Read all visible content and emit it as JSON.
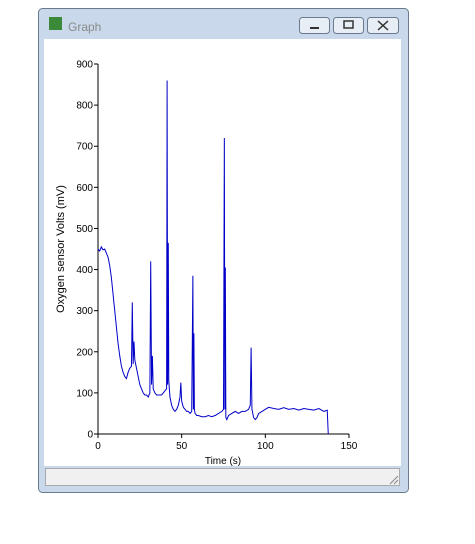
{
  "window": {
    "title": "Graph"
  },
  "chart_data": {
    "type": "line",
    "x_label": "Time (s)",
    "y_label": "Oxygen sensor Volts (mV)",
    "color": "#0000c8",
    "xlim": [
      0,
      150
    ],
    "ylim": [
      0,
      900
    ],
    "xticks": [
      0,
      50,
      100,
      150
    ],
    "yticks": [
      0,
      100,
      200,
      300,
      400,
      500,
      600,
      700,
      800,
      900
    ],
    "x": [
      0,
      1,
      2,
      3,
      4,
      5,
      6,
      7,
      8,
      9,
      10,
      11,
      12,
      13,
      14,
      15,
      16,
      17,
      18,
      19,
      20,
      20.5,
      21,
      21.5,
      22,
      23,
      24,
      25,
      26,
      27,
      28,
      29,
      30,
      31,
      31.5,
      32,
      32.5,
      33,
      34,
      35,
      36,
      37,
      38,
      39,
      40,
      41,
      41.3,
      41.6,
      42,
      42.3,
      43,
      44,
      45,
      46,
      47,
      48,
      49,
      49.5,
      50,
      51,
      52,
      53,
      54,
      55,
      56,
      56.7,
      57,
      57.3,
      57.6,
      58,
      59,
      60,
      62,
      64,
      66,
      68,
      70,
      72,
      74,
      75,
      75.5,
      75.8,
      76.1,
      76.4,
      77,
      78,
      80,
      82,
      84,
      86,
      88,
      90,
      91,
      91.5,
      92,
      93,
      94,
      95,
      96,
      98,
      100,
      102,
      105,
      108,
      111,
      114,
      117,
      120,
      123,
      126,
      129,
      132,
      135,
      137,
      137.6
    ],
    "values": [
      450,
      445,
      455,
      448,
      450,
      440,
      430,
      410,
      380,
      340,
      300,
      260,
      220,
      190,
      165,
      150,
      140,
      135,
      150,
      160,
      165,
      320,
      170,
      225,
      180,
      160,
      140,
      120,
      110,
      100,
      95,
      95,
      90,
      100,
      420,
      120,
      190,
      110,
      100,
      95,
      95,
      95,
      95,
      100,
      105,
      110,
      860,
      120,
      465,
      130,
      90,
      70,
      60,
      55,
      60,
      70,
      90,
      125,
      80,
      65,
      60,
      55,
      55,
      50,
      55,
      385,
      60,
      245,
      60,
      50,
      45,
      45,
      42,
      42,
      45,
      42,
      45,
      50,
      55,
      60,
      720,
      60,
      405,
      40,
      35,
      45,
      50,
      55,
      50,
      55,
      55,
      60,
      70,
      210,
      60,
      40,
      35,
      40,
      50,
      55,
      60,
      65,
      62,
      60,
      64,
      60,
      62,
      58,
      62,
      60,
      58,
      62,
      55,
      58,
      0
    ]
  }
}
